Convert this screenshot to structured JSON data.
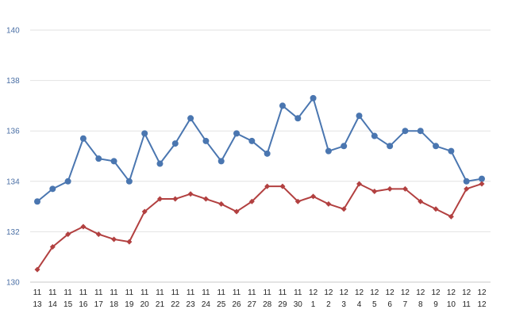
{
  "chart_data": {
    "type": "line",
    "title": "",
    "xlabel": "",
    "ylabel": "",
    "ylim": [
      130,
      140
    ],
    "yticks": [
      130,
      132,
      134,
      136,
      138,
      140
    ],
    "grid": true,
    "legend": "none",
    "categories": [
      [
        "11",
        "13"
      ],
      [
        "11",
        "14"
      ],
      [
        "11",
        "15"
      ],
      [
        "11",
        "16"
      ],
      [
        "11",
        "17"
      ],
      [
        "11",
        "18"
      ],
      [
        "11",
        "19"
      ],
      [
        "11",
        "20"
      ],
      [
        "11",
        "21"
      ],
      [
        "11",
        "22"
      ],
      [
        "11",
        "23"
      ],
      [
        "11",
        "24"
      ],
      [
        "11",
        "25"
      ],
      [
        "11",
        "26"
      ],
      [
        "11",
        "27"
      ],
      [
        "11",
        "28"
      ],
      [
        "11",
        "29"
      ],
      [
        "11",
        "30"
      ],
      [
        "12",
        "1"
      ],
      [
        "12",
        "2"
      ],
      [
        "12",
        "3"
      ],
      [
        "12",
        "4"
      ],
      [
        "12",
        "5"
      ],
      [
        "12",
        "6"
      ],
      [
        "12",
        "7"
      ],
      [
        "12",
        "8"
      ],
      [
        "12",
        "9"
      ],
      [
        "12",
        "10"
      ],
      [
        "12",
        "11"
      ],
      [
        "12",
        "12"
      ]
    ],
    "series": [
      {
        "color": "#4a76b0",
        "marker": "circle",
        "values": [
          133.2,
          133.7,
          134.0,
          135.7,
          134.9,
          134.8,
          134.0,
          135.9,
          134.7,
          135.5,
          136.5,
          135.6,
          134.8,
          135.9,
          135.6,
          135.1,
          137.0,
          136.5,
          137.3,
          135.2,
          135.4,
          136.6,
          135.8,
          135.4,
          136.0,
          136.0,
          135.4,
          135.2,
          134.0,
          134.1
        ]
      },
      {
        "color": "#b24040",
        "marker": "diamond",
        "values": [
          130.5,
          131.4,
          131.9,
          132.2,
          131.9,
          131.7,
          131.6,
          132.8,
          133.3,
          133.3,
          133.5,
          133.3,
          133.1,
          132.8,
          133.2,
          133.8,
          133.8,
          133.2,
          133.4,
          133.1,
          132.9,
          133.9,
          133.6,
          133.7,
          133.7,
          133.2,
          132.9,
          132.6,
          133.7,
          133.9
        ]
      }
    ]
  }
}
